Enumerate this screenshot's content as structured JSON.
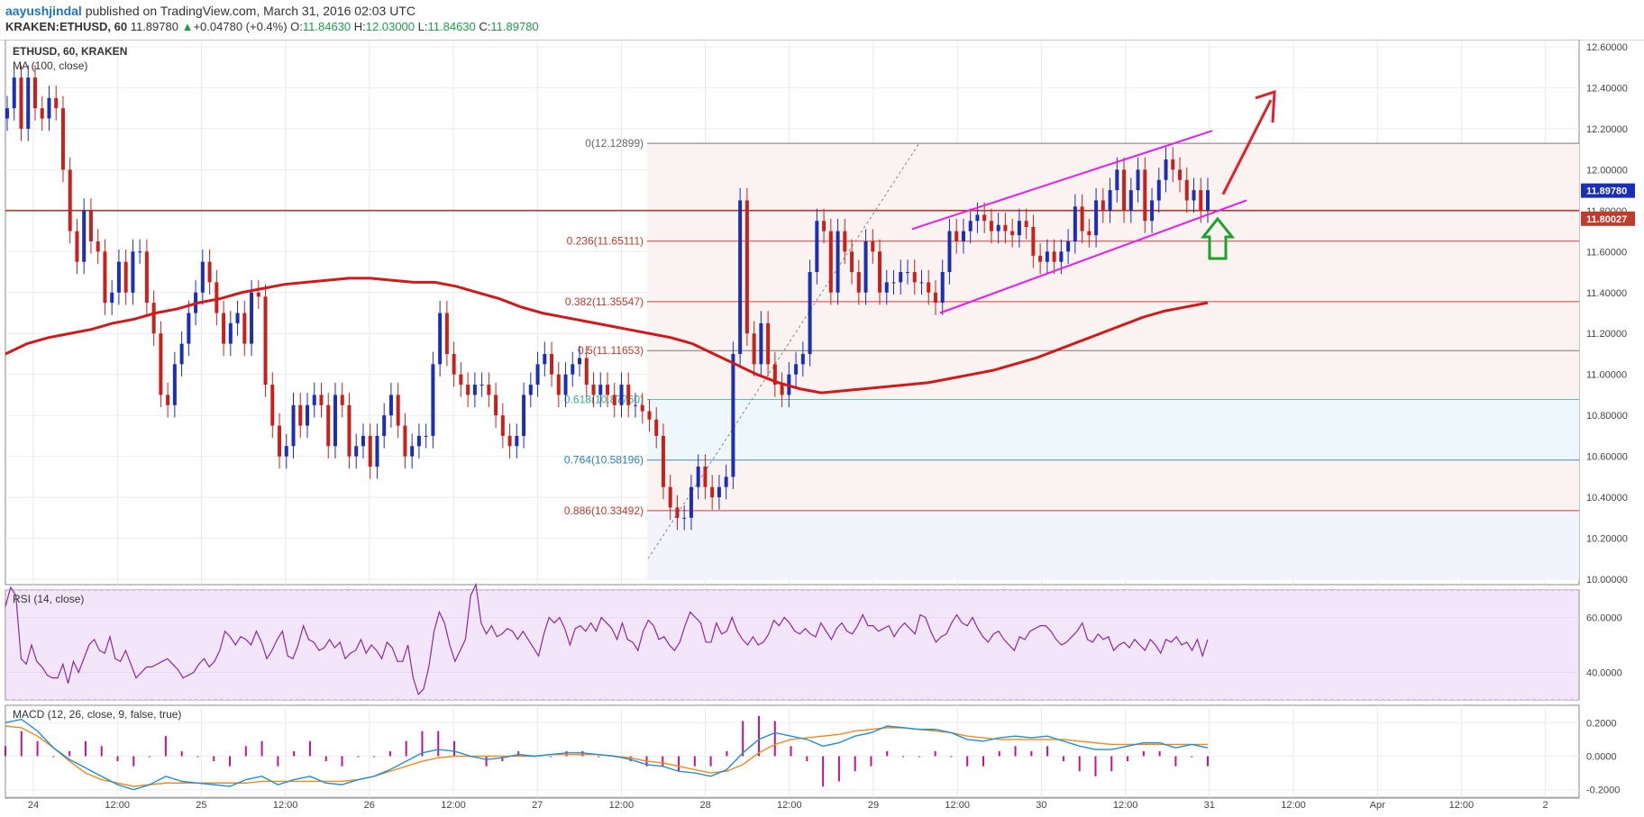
{
  "header": {
    "author": "aayushjindal",
    "published": "published on TradingView.com, March 31, 2016 02:03 UTC",
    "symbol": "KRAKEN:ETHUSD, 60",
    "last": "11.89780",
    "change": "+0.04780 (+0.4%)",
    "open_label": "O:",
    "open": "11.84630",
    "high_label": "H:",
    "high": "12.03000",
    "low_label": "L:",
    "low": "11.84630",
    "close_label": "C:",
    "close": "11.89780"
  },
  "colors": {
    "up": "#1a2fb5",
    "down": "#c8201a",
    "ma": "#d01a1a",
    "channel": "#e81ce8",
    "arrow_up": "#e0202a",
    "arrow_support": "#1aa52a",
    "rsi_line": "#8b2a9e",
    "rsi_band": "#f3e6fb",
    "macd": "#1e8fd6",
    "signal": "#f08a1a",
    "hist": "#c0148a"
  },
  "chart_data": [
    {
      "type": "candlestick",
      "title": "ETHUSD, 60, KRAKEN",
      "indicator": "MA (100, close)",
      "ylim": [
        10.0,
        12.6
      ],
      "yticks": [
        "12.60000",
        "12.40000",
        "12.20000",
        "12.00000",
        "11.80000",
        "11.60000",
        "11.40000",
        "11.20000",
        "11.00000",
        "10.80000",
        "10.60000",
        "10.40000",
        "10.20000",
        "10.00000"
      ],
      "xticks": [
        "24",
        "12:00",
        "25",
        "12:00",
        "26",
        "12:00",
        "27",
        "12:00",
        "28",
        "12:00",
        "29",
        "12:00",
        "30",
        "12:00",
        "31",
        "12:00",
        "Apr",
        "12:00",
        "2"
      ],
      "last_price_label": "11.89780",
      "horizontal_line_label": "11.80027",
      "horizontal_line": 11.80027,
      "fibonacci": [
        {
          "label": "0(12.12899)",
          "value": 12.12899
        },
        {
          "label": "0.236(11.65111)",
          "value": 11.65111
        },
        {
          "label": "0.382(11.35547)",
          "value": 11.35547
        },
        {
          "label": "0.5(11.11653)",
          "value": 11.11653
        },
        {
          "label": "0.618(10.87760)",
          "value": 10.8776
        },
        {
          "label": "0.764(10.58196)",
          "value": 10.58196
        },
        {
          "label": "0.886(10.33492)",
          "value": 10.33492
        }
      ],
      "closes": [
        12.3,
        12.45,
        12.2,
        12.45,
        12.3,
        12.25,
        12.35,
        12.3,
        12.0,
        11.7,
        11.55,
        11.8,
        11.65,
        11.6,
        11.35,
        11.4,
        11.55,
        11.4,
        11.6,
        11.6,
        11.35,
        11.2,
        10.9,
        10.85,
        11.05,
        11.15,
        11.3,
        11.4,
        11.55,
        11.45,
        11.3,
        11.15,
        11.25,
        11.3,
        11.15,
        11.4,
        11.38,
        10.95,
        10.75,
        10.6,
        10.65,
        10.85,
        10.75,
        10.85,
        10.9,
        10.85,
        10.65,
        10.9,
        10.85,
        10.6,
        10.65,
        10.7,
        10.55,
        10.7,
        10.8,
        10.9,
        10.75,
        10.6,
        10.65,
        10.7,
        10.7,
        11.05,
        11.3,
        11.1,
        11.0,
        10.95,
        10.9,
        10.95,
        10.95,
        10.9,
        10.8,
        10.7,
        10.65,
        10.7,
        10.9,
        10.95,
        11.05,
        11.1,
        11.0,
        10.9,
        11.0,
        11.05,
        11.08,
        10.95,
        10.9,
        10.95,
        10.9,
        10.85,
        10.95,
        10.85,
        10.85,
        10.82,
        10.78,
        10.7,
        10.45,
        10.35,
        10.3,
        10.3,
        10.45,
        10.55,
        10.45,
        10.4,
        10.45,
        10.5,
        11.1,
        11.85,
        11.2,
        11.05,
        11.25,
        11.05,
        10.95,
        10.9,
        11.0,
        11.05,
        11.1,
        11.5,
        11.75,
        11.7,
        11.4,
        11.7,
        11.6,
        11.5,
        11.4,
        11.65,
        11.6,
        11.4,
        11.45,
        11.45,
        11.5,
        11.5,
        11.45,
        11.45,
        11.4,
        11.35,
        11.5,
        11.7,
        11.65,
        11.7,
        11.75,
        11.78,
        11.75,
        11.7,
        11.73,
        11.7,
        11.68,
        11.75,
        11.72,
        11.58,
        11.55,
        11.6,
        11.55,
        11.6,
        11.65,
        11.82,
        11.7,
        11.68,
        11.85,
        11.8,
        11.9,
        12.0,
        11.8,
        11.9,
        12.0,
        11.75,
        11.85,
        11.95,
        12.05,
        12.0,
        11.95,
        11.85,
        11.9,
        11.8,
        11.9
      ],
      "ma100": [
        11.1,
        11.15,
        11.18,
        11.2,
        11.22,
        11.25,
        11.27,
        11.3,
        11.32,
        11.35,
        11.37,
        11.4,
        11.42,
        11.44,
        11.45,
        11.46,
        11.47,
        11.47,
        11.46,
        11.45,
        11.45,
        11.43,
        11.4,
        11.37,
        11.33,
        11.3,
        11.28,
        11.26,
        11.24,
        11.22,
        11.2,
        11.18,
        11.15,
        11.1,
        11.05,
        11.0,
        10.96,
        10.93,
        10.91,
        10.92,
        10.93,
        10.94,
        10.95,
        10.96,
        10.98,
        11.0,
        11.02,
        11.05,
        11.08,
        11.12,
        11.16,
        11.2,
        11.24,
        11.28,
        11.31,
        11.33,
        11.35
      ]
    },
    {
      "type": "line",
      "title": "RSI (14, close)",
      "ylim": [
        30,
        70
      ],
      "yticks": [
        "60.0000",
        "40.0000"
      ],
      "values": [
        64,
        71,
        68,
        45,
        43,
        50,
        44,
        42,
        39,
        38,
        38,
        43,
        36,
        44,
        40,
        45,
        50,
        52,
        48,
        47,
        53,
        45,
        44,
        48,
        43,
        38,
        40,
        42,
        42,
        43,
        44,
        45,
        43,
        41,
        38,
        39,
        40,
        43,
        45,
        42,
        44,
        48,
        55,
        53,
        50,
        53,
        52,
        50,
        55,
        51,
        45,
        48,
        52,
        55,
        46,
        45,
        50,
        57,
        52,
        51,
        48,
        49,
        52,
        49,
        51,
        45,
        47,
        48,
        52,
        47,
        50,
        48,
        45,
        51,
        49,
        44,
        44,
        50,
        38,
        32,
        34,
        42,
        55,
        62,
        58,
        50,
        44,
        48,
        52,
        68,
        72,
        58,
        54,
        57,
        53,
        54,
        56,
        55,
        52,
        55,
        52,
        49,
        46,
        54,
        60,
        58,
        60,
        56,
        50,
        56,
        57,
        55,
        58,
        55,
        60,
        58,
        56,
        52,
        58,
        52,
        51,
        48,
        55,
        59,
        57,
        52,
        53,
        50,
        48,
        51,
        57,
        62,
        60,
        58,
        51,
        51,
        58,
        54,
        55,
        60,
        55,
        52,
        50,
        53,
        50,
        51,
        54,
        59,
        57,
        60,
        58,
        55,
        54,
        56,
        54,
        53,
        58,
        55,
        52,
        56,
        58,
        55,
        54,
        57,
        61,
        57,
        57,
        55,
        56,
        57,
        53,
        56,
        58,
        56,
        54,
        61,
        60,
        55,
        51,
        53,
        54,
        58,
        61,
        58,
        57,
        60,
        56,
        53,
        51,
        54,
        55,
        52,
        50,
        48,
        53,
        52,
        55,
        56,
        57,
        57,
        55,
        52,
        50,
        51,
        53,
        55,
        58,
        52,
        51,
        54,
        52,
        53,
        48,
        50,
        51,
        49,
        52,
        50,
        48,
        52,
        50,
        47,
        52,
        51,
        53,
        50,
        51,
        48,
        52,
        46,
        52
      ]
    },
    {
      "type": "line",
      "title": "MACD (12, 26, close, 9, false, true)",
      "ylim": [
        -0.25,
        0.25
      ],
      "yticks": [
        "0.2000",
        "0.0000",
        "-0.2000"
      ],
      "series": [
        {
          "name": "MACD",
          "values": [
            0.2,
            0.22,
            0.15,
            0.05,
            -0.02,
            -0.07,
            -0.12,
            -0.17,
            -0.2,
            -0.17,
            -0.12,
            -0.15,
            -0.16,
            -0.17,
            -0.18,
            -0.14,
            -0.12,
            -0.17,
            -0.14,
            -0.12,
            -0.16,
            -0.17,
            -0.14,
            -0.12,
            -0.08,
            -0.03,
            0.02,
            0.04,
            0.03,
            0.0,
            -0.02,
            -0.01,
            0.01,
            0.0,
            0.01,
            0.02,
            0.02,
            0.01,
            0.0,
            -0.02,
            -0.05,
            -0.06,
            -0.09,
            -0.1,
            -0.12,
            -0.08,
            0.02,
            0.1,
            0.14,
            0.12,
            0.1,
            0.06,
            0.08,
            0.12,
            0.14,
            0.18,
            0.17,
            0.16,
            0.16,
            0.14,
            0.1,
            0.09,
            0.11,
            0.12,
            0.11,
            0.12,
            0.09,
            0.06,
            0.04,
            0.04,
            0.06,
            0.08,
            0.08,
            0.05,
            0.07,
            0.05
          ]
        },
        {
          "name": "Signal",
          "values": [
            0.18,
            0.17,
            0.12,
            0.05,
            -0.03,
            -0.1,
            -0.14,
            -0.16,
            -0.18,
            -0.17,
            -0.16,
            -0.16,
            -0.16,
            -0.16,
            -0.16,
            -0.16,
            -0.15,
            -0.15,
            -0.15,
            -0.15,
            -0.15,
            -0.15,
            -0.14,
            -0.12,
            -0.09,
            -0.06,
            -0.03,
            -0.01,
            0.0,
            0.0,
            0.0,
            0.0,
            0.0,
            0.0,
            0.01,
            0.01,
            0.01,
            0.01,
            0.0,
            -0.01,
            -0.03,
            -0.04,
            -0.06,
            -0.08,
            -0.1,
            -0.09,
            -0.05,
            0.02,
            0.07,
            0.1,
            0.11,
            0.12,
            0.13,
            0.15,
            0.16,
            0.17,
            0.17,
            0.16,
            0.15,
            0.14,
            0.12,
            0.11,
            0.1,
            0.1,
            0.1,
            0.1,
            0.1,
            0.09,
            0.08,
            0.07,
            0.07,
            0.07,
            0.07,
            0.07,
            0.07,
            0.07
          ]
        }
      ]
    }
  ]
}
